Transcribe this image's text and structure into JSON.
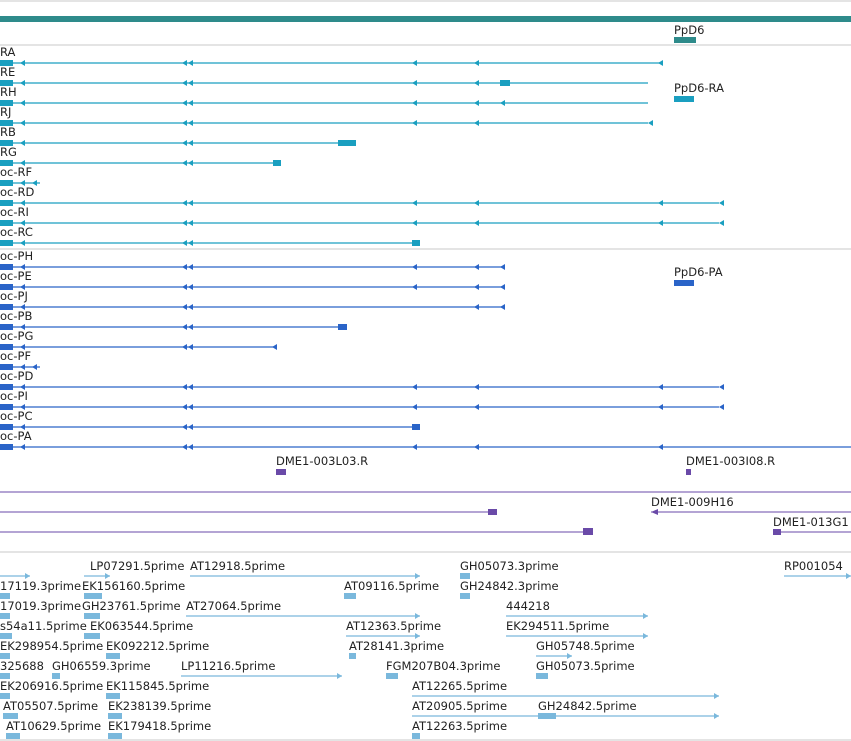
{
  "colors": {
    "gene": "#2e8b8b",
    "transcript_teal": "#1a9fc0",
    "transcript_blue": "#2a64c8",
    "clone": "#6a4aa8",
    "est": "#7ab8dc",
    "divider": "#c8c8c8",
    "text": "#222222"
  },
  "gene_track": {
    "gene_label": "PpD6",
    "teal_transcripts": [
      {
        "label": "RA",
        "feature_label": ""
      },
      {
        "label": "RE",
        "feature_label": "PpD6-RA"
      },
      {
        "label": "RH",
        "feature_label": ""
      },
      {
        "label": "RJ",
        "feature_label": ""
      },
      {
        "label": "RB",
        "feature_label": ""
      },
      {
        "label": "RG",
        "feature_label": ""
      },
      {
        "label": "oc-RF",
        "feature_label": ""
      },
      {
        "label": "oc-RD",
        "feature_label": ""
      },
      {
        "label": "oc-RI",
        "feature_label": ""
      },
      {
        "label": "oc-RC",
        "feature_label": ""
      }
    ],
    "blue_proteins": [
      {
        "label": "oc-PH",
        "feature_label": "PpD6-PA"
      },
      {
        "label": "oc-PE",
        "feature_label": ""
      },
      {
        "label": "oc-PJ",
        "feature_label": ""
      },
      {
        "label": "oc-PB",
        "feature_label": ""
      },
      {
        "label": "oc-PG",
        "feature_label": ""
      },
      {
        "label": "oc-PF",
        "feature_label": ""
      },
      {
        "label": "oc-PD",
        "feature_label": ""
      },
      {
        "label": "oc-PI",
        "feature_label": ""
      },
      {
        "label": "oc-PC",
        "feature_label": ""
      },
      {
        "label": "oc-PA",
        "feature_label": ""
      }
    ]
  },
  "clone_track": {
    "labels": [
      "DME1-003L03.R",
      "DME1-003I08.R",
      "DME1-009H16",
      "DME1-013G1"
    ]
  },
  "est_track": {
    "rows": [
      [
        "LP07291.5prime",
        "AT12918.5prime",
        "GH05073.3prime",
        "RP001054"
      ],
      [
        "17119.3prime",
        "EK156160.5prime",
        "AT09116.5prime",
        "GH24842.3prime"
      ],
      [
        "17019.3prime",
        "GH23761.5prime",
        "AT27064.5prime",
        "444218"
      ],
      [
        "s54a11.5prime",
        "EK063544.5prime",
        "AT12363.5prime",
        "EK294511.5prime"
      ],
      [
        "EK298954.5prime",
        "EK092212.5prime",
        "AT28141.3prime",
        "GH05748.5prime"
      ],
      [
        "325688",
        "GH06559.3prime",
        "LP11216.5prime",
        "FGM207B04.3prime",
        "GH05073.5prime"
      ],
      [
        "EK206916.5prime",
        "EK115845.5prime",
        "AT12265.5prime"
      ],
      [
        "AT05507.5prime",
        "EK238139.5prime",
        "AT20905.5prime",
        "GH24842.5prime"
      ],
      [
        "AT10629.5prime",
        "EK179418.5prime",
        "AT12263.5prime"
      ]
    ]
  }
}
